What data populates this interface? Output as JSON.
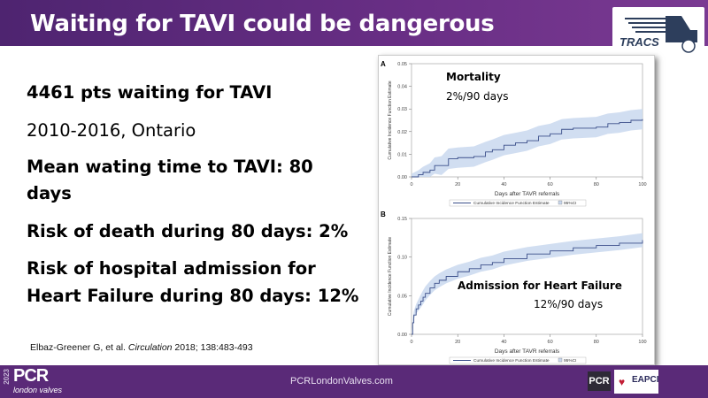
{
  "header": {
    "title": "Waiting for TAVI could be dangerous",
    "logo_text": "TRACS"
  },
  "bullets": [
    {
      "text": "4461 pts waiting for TAVI",
      "bold": true
    },
    {
      "text": "2010-2016, Ontario",
      "bold": false
    },
    {
      "text": "Mean wating time to TAVI: 80",
      "bold": true
    },
    {
      "text": "days",
      "bold": true
    },
    {
      "text": "Risk of death during 80 days: 2%",
      "bold": true
    },
    {
      "text": "Risk of hospital admission for",
      "bold": true
    },
    {
      "text": "Heart Failure during 80 days: 12%",
      "bold": true
    }
  ],
  "citation": {
    "authors": "Elbaz-Greener G, et al. ",
    "journal": "Circulation",
    "rest": " 2018; 138:483-493"
  },
  "footer": {
    "year": "2023",
    "brand": "PCR",
    "sub": "london valves",
    "url": "PCRLondonValves.com",
    "logo1": "PCR",
    "logo2": "EAPCI"
  },
  "chart_data": [
    {
      "type": "line",
      "panel": "A",
      "title": "Mortality",
      "subtitle": "2%/90 days",
      "xlabel": "Days after TAVR referrals",
      "ylabel": "Cumulative Incidence Function Estimate",
      "xlim": [
        0,
        100
      ],
      "ylim": [
        0,
        0.05
      ],
      "xticks": [
        0,
        20,
        40,
        60,
        80,
        100
      ],
      "yticks": [
        "0.00",
        "0.01",
        "0.02",
        "0.03",
        "0.04",
        "0.05"
      ],
      "legend": [
        "Cumulative Incidence Function Estimate",
        "95%CI"
      ],
      "x": [
        0,
        3,
        5,
        8,
        10,
        13,
        16,
        20,
        27,
        32,
        35,
        40,
        45,
        50,
        55,
        60,
        65,
        70,
        80,
        85,
        90,
        95,
        100
      ],
      "y": [
        0,
        0.001,
        0.002,
        0.003,
        0.005,
        0.005,
        0.008,
        0.0085,
        0.009,
        0.011,
        0.012,
        0.014,
        0.015,
        0.016,
        0.018,
        0.019,
        0.021,
        0.0215,
        0.022,
        0.0235,
        0.024,
        0.025,
        0.0255
      ],
      "ci": 0.0045
    },
    {
      "type": "line",
      "panel": "B",
      "title": "Admission for Heart Failure",
      "subtitle": "12%/90 days",
      "xlabel": "Days after TAVR referrals",
      "ylabel": "Cumulative Incidence Function Estimate",
      "xlim": [
        0,
        100
      ],
      "ylim": [
        0,
        0.15
      ],
      "xticks": [
        0,
        20,
        40,
        60,
        80,
        100
      ],
      "yticks": [
        "0.00",
        "0.05",
        "0.10",
        "0.15"
      ],
      "legend": [
        "Cumulative Incidence Function Estimate",
        "95%CI"
      ],
      "x": [
        0,
        0.5,
        1,
        2,
        3,
        4,
        5,
        6,
        8,
        10,
        12,
        15,
        20,
        25,
        30,
        35,
        40,
        50,
        60,
        70,
        80,
        90,
        100
      ],
      "y": [
        0,
        0.015,
        0.025,
        0.033,
        0.038,
        0.043,
        0.048,
        0.053,
        0.06,
        0.066,
        0.07,
        0.075,
        0.081,
        0.085,
        0.09,
        0.093,
        0.098,
        0.104,
        0.108,
        0.112,
        0.115,
        0.118,
        0.122
      ],
      "ci": 0.009
    }
  ],
  "colors": {
    "purple": "#5a2a78",
    "line": "#3b4f8a",
    "band": "#c9d8ee"
  }
}
